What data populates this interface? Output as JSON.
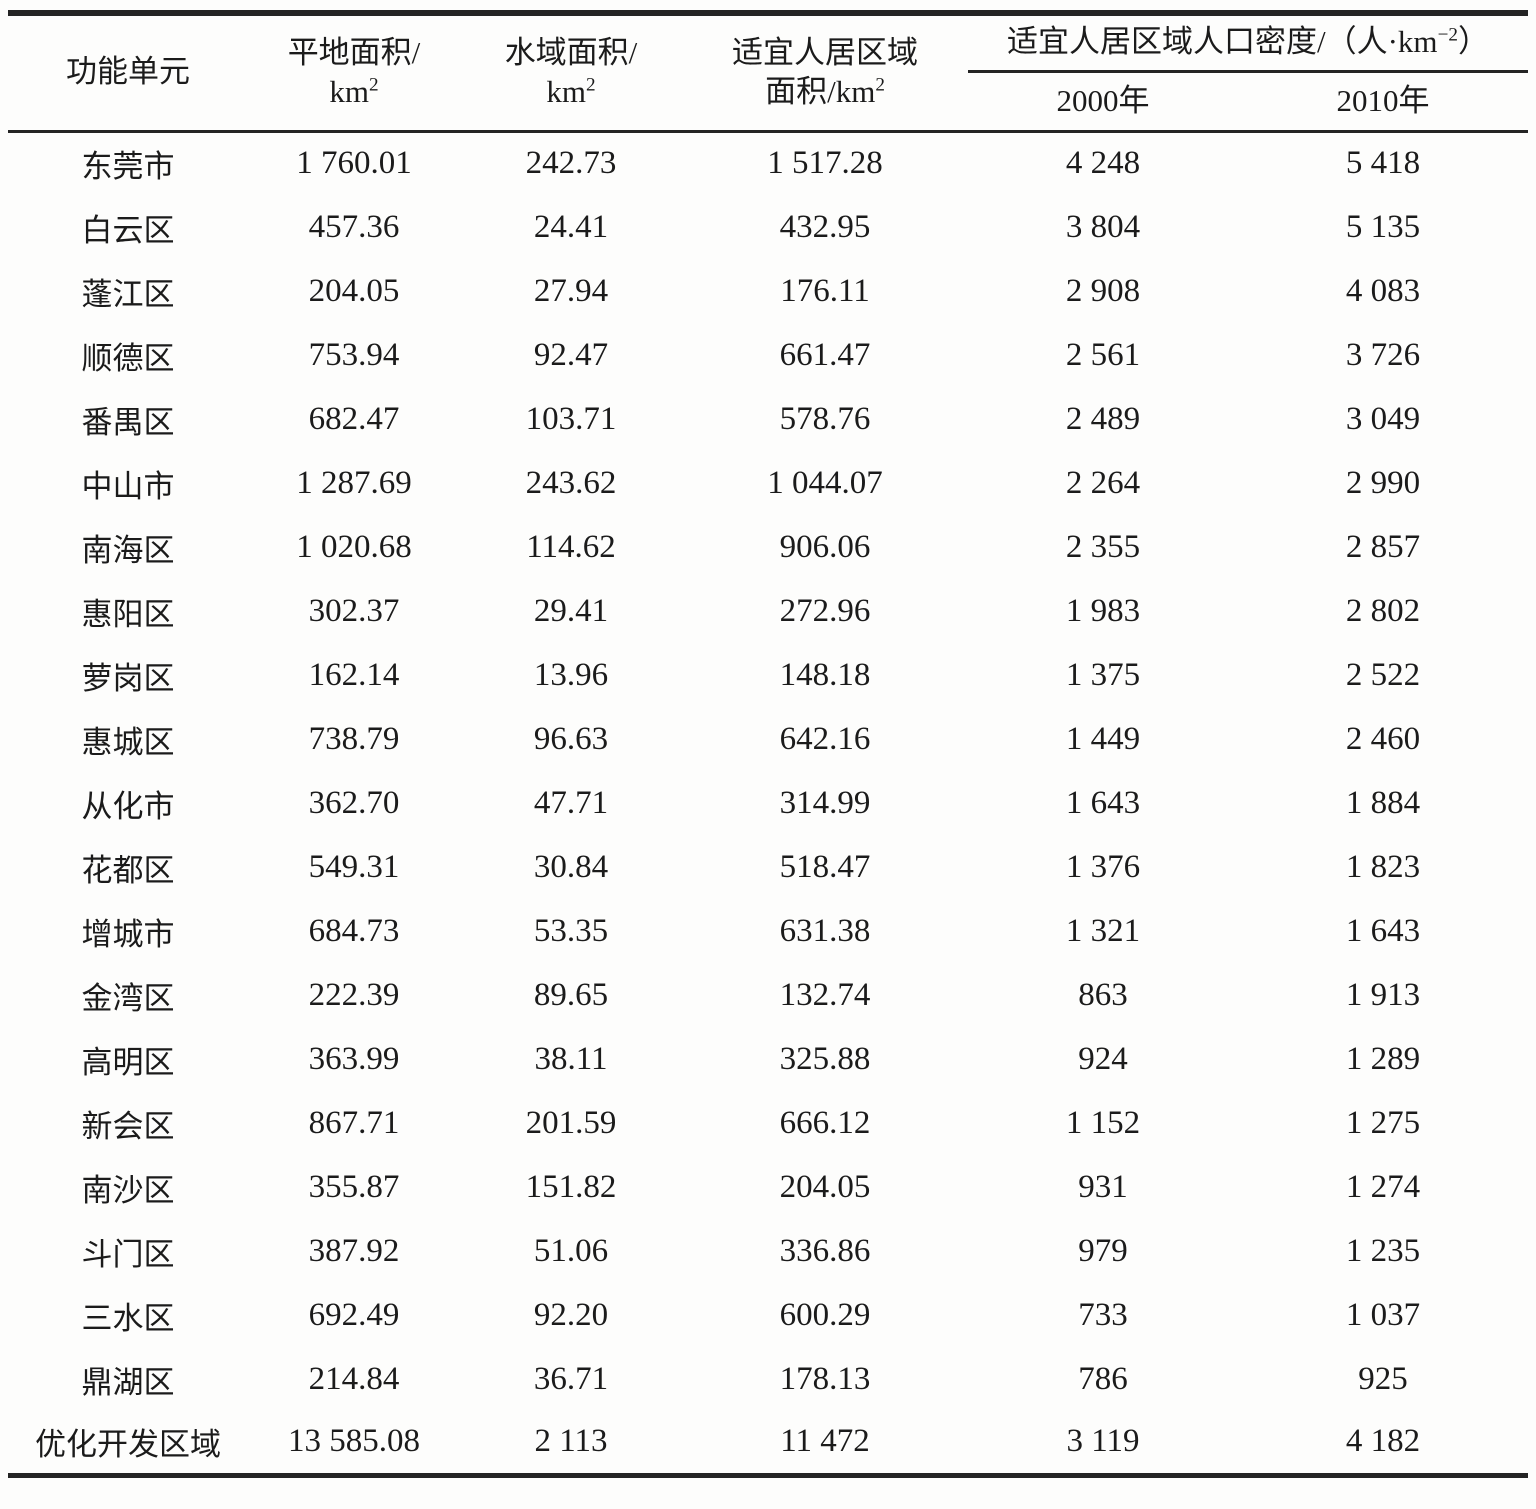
{
  "colors": {
    "text": "#1b1b1b",
    "border": "#242424",
    "background": "#fdfdfc"
  },
  "table": {
    "header": {
      "unit_col": "功能单元",
      "flat_area": {
        "line1": "平地面积/",
        "line2_base": "km",
        "line2_sup": "2"
      },
      "water_area": {
        "line1": "水域面积/",
        "line2_base": "km",
        "line2_sup": "2"
      },
      "habitable_area": {
        "line1": "适宜人居区域",
        "line2_base": "面积/km",
        "line2_sup": "2"
      },
      "density_group": {
        "base": "适宜人居区域人口密度/（人·km",
        "sup": "−2",
        "close": "）"
      },
      "year_2000": "2000年",
      "year_2010": "2010年"
    },
    "rows": [
      [
        "东莞市",
        "1 760.01",
        "242.73",
        "1 517.28",
        "4 248",
        "5 418"
      ],
      [
        "白云区",
        "457.36",
        "24.41",
        "432.95",
        "3 804",
        "5 135"
      ],
      [
        "蓬江区",
        "204.05",
        "27.94",
        "176.11",
        "2 908",
        "4 083"
      ],
      [
        "顺德区",
        "753.94",
        "92.47",
        "661.47",
        "2 561",
        "3 726"
      ],
      [
        "番禺区",
        "682.47",
        "103.71",
        "578.76",
        "2 489",
        "3 049"
      ],
      [
        "中山市",
        "1 287.69",
        "243.62",
        "1 044.07",
        "2 264",
        "2 990"
      ],
      [
        "南海区",
        "1 020.68",
        "114.62",
        "906.06",
        "2 355",
        "2 857"
      ],
      [
        "惠阳区",
        "302.37",
        "29.41",
        "272.96",
        "1 983",
        "2 802"
      ],
      [
        "萝岗区",
        "162.14",
        "13.96",
        "148.18",
        "1 375",
        "2 522"
      ],
      [
        "惠城区",
        "738.79",
        "96.63",
        "642.16",
        "1 449",
        "2 460"
      ],
      [
        "从化市",
        "362.70",
        "47.71",
        "314.99",
        "1 643",
        "1 884"
      ],
      [
        "花都区",
        "549.31",
        "30.84",
        "518.47",
        "1 376",
        "1 823"
      ],
      [
        "增城市",
        "684.73",
        "53.35",
        "631.38",
        "1 321",
        "1 643"
      ],
      [
        "金湾区",
        "222.39",
        "89.65",
        "132.74",
        "863",
        "1 913"
      ],
      [
        "高明区",
        "363.99",
        "38.11",
        "325.88",
        "924",
        "1 289"
      ],
      [
        "新会区",
        "867.71",
        "201.59",
        "666.12",
        "1 152",
        "1 275"
      ],
      [
        "南沙区",
        "355.87",
        "151.82",
        "204.05",
        "931",
        "1 274"
      ],
      [
        "斗门区",
        "387.92",
        "51.06",
        "336.86",
        "979",
        "1 235"
      ],
      [
        "三水区",
        "692.49",
        "92.20",
        "600.29",
        "733",
        "1 037"
      ],
      [
        "鼎湖区",
        "214.84",
        "36.71",
        "178.13",
        "786",
        "925"
      ],
      [
        "优化开发区域",
        "13 585.08",
        "2 113",
        "11 472",
        "3 119",
        "4 182"
      ]
    ]
  }
}
